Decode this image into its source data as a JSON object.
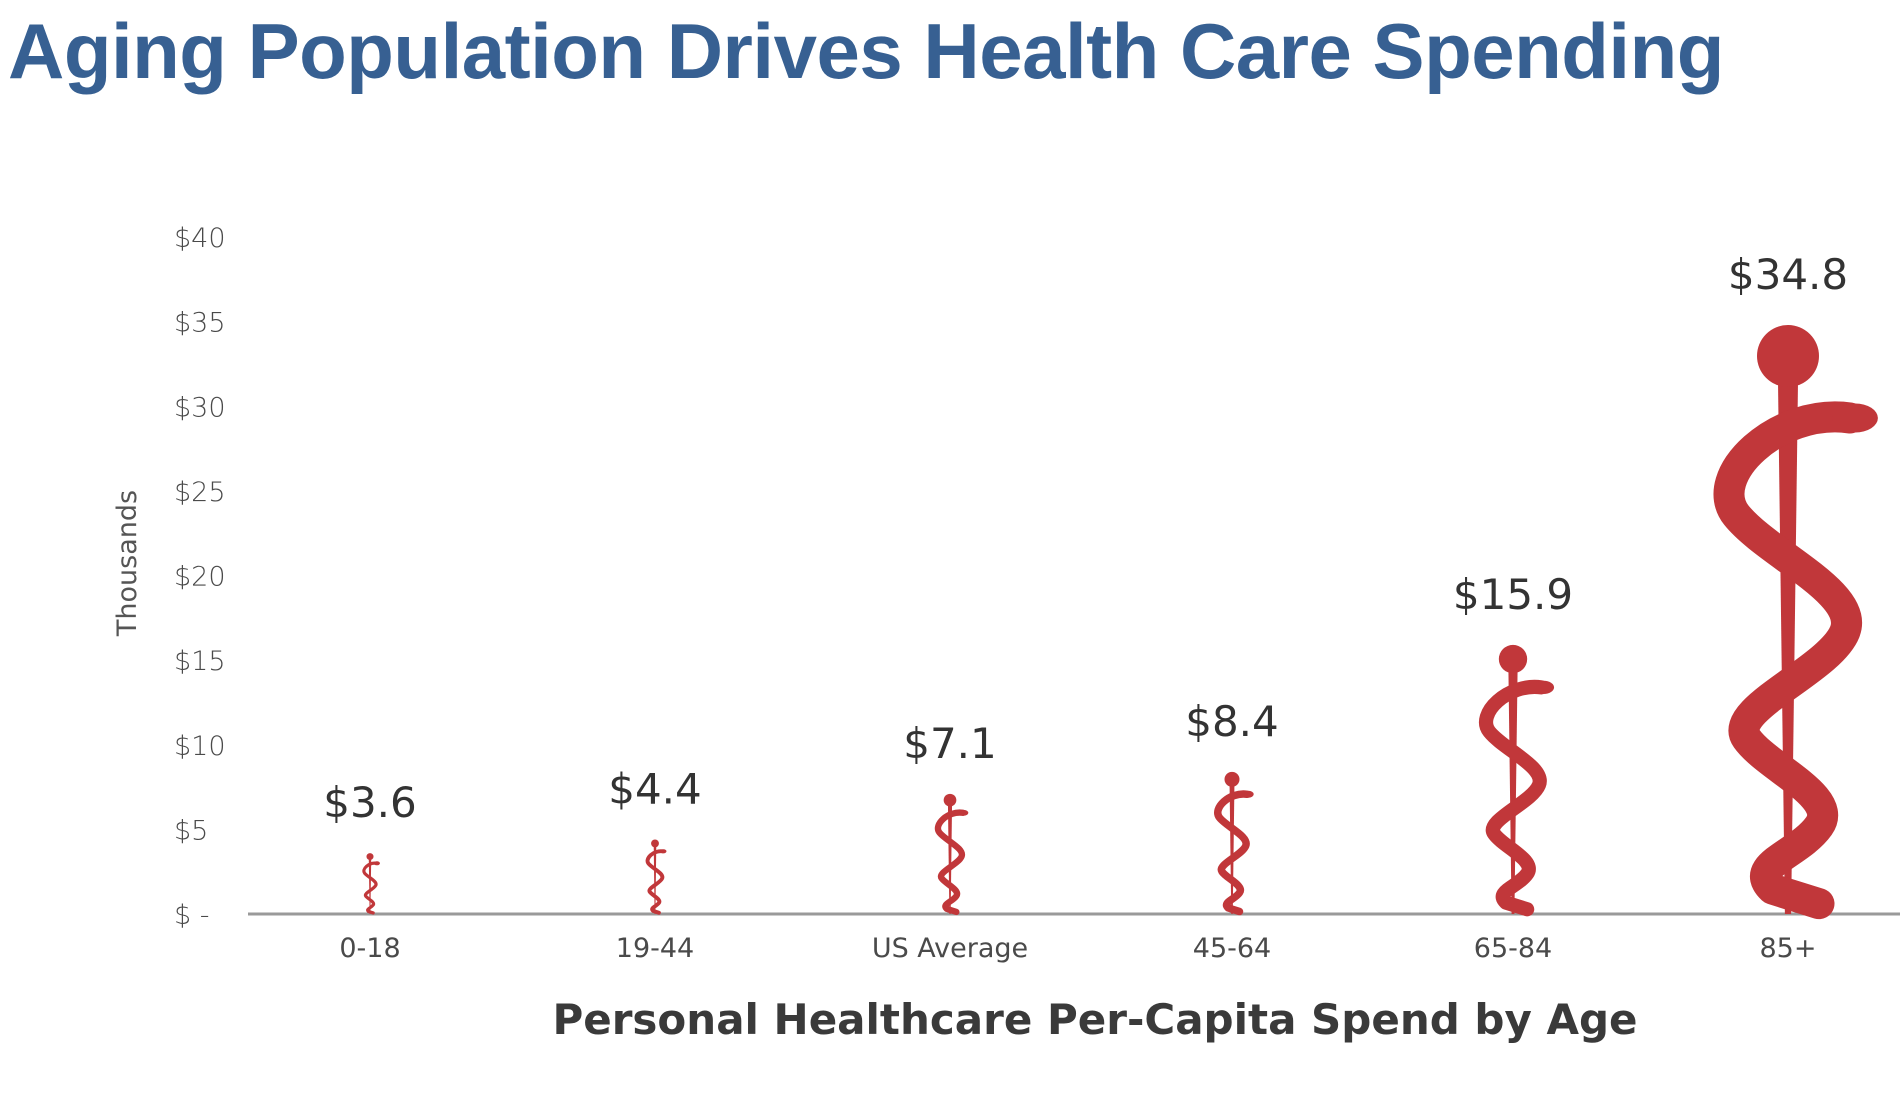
{
  "page": {
    "title": "Aging Population Drives Health Care Spending",
    "title_color": "#376092"
  },
  "chart_data": {
    "type": "bar",
    "mark_style": "rod-of-asclepius-icon",
    "mark_color": "#c1373a",
    "categories": [
      "0-18",
      "19-44",
      "US Average",
      "45-64",
      "65-84",
      "85+"
    ],
    "values": [
      3.6,
      4.4,
      7.1,
      8.4,
      15.9,
      34.8
    ],
    "data_labels": [
      "$3.6",
      "$4.4",
      "$7.1",
      "$8.4",
      "$15.9",
      "$34.8"
    ],
    "ylabel": "Thousands",
    "xlabel": "Personal Healthcare Per-Capita Spend by Age",
    "ylim": [
      0,
      40
    ],
    "yticks": [
      0,
      5,
      10,
      15,
      20,
      25,
      30,
      35,
      40
    ],
    "ytick_labels": [
      "$ -",
      "$5",
      "$10",
      "$15",
      "$20",
      "$25",
      "$30",
      "$35",
      "$40"
    ],
    "grid": false,
    "legend": "none"
  }
}
